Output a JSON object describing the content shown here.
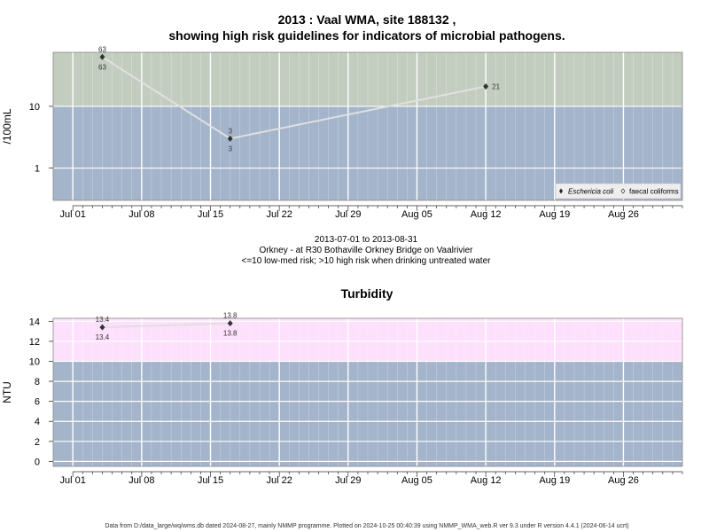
{
  "chart_data": [
    {
      "type": "line",
      "title_line1": "2013 : Vaal WMA, site 188132 ,",
      "title_line2": "showing high risk guidelines for indicators of microbial pathogens.",
      "ylabel": "/100mL",
      "y_scale": "log",
      "ylim": [
        0.3,
        75
      ],
      "y_ticks": [
        1,
        10
      ],
      "y_tick_labels": [
        "1",
        "10"
      ],
      "threshold": 10,
      "x_tick_labels": [
        "Jul 01",
        "Jul 08",
        "Jul 15",
        "Jul 22",
        "Jul 29",
        "Aug 05",
        "Aug 12",
        "Aug 19",
        "Aug 26"
      ],
      "x_tick_days": [
        0,
        7,
        14,
        21,
        28,
        35,
        42,
        49,
        56
      ],
      "x_range_days": [
        -2,
        62
      ],
      "legend_position": "bottom-right",
      "legend": [
        "Eschericia coli",
        "faecal coliforms"
      ],
      "series": [
        {
          "name": "Eschericia coli",
          "x_days": [
            3,
            16,
            42
          ],
          "values": [
            63,
            3,
            21
          ],
          "labels_above": [
            "63",
            "3",
            ""
          ],
          "labels_below": [
            "63",
            "3",
            ""
          ],
          "labels_right": [
            "",
            "",
            "21"
          ]
        }
      ],
      "caption_lines": [
        "2013-07-01 to 2013-08-31",
        "Orkney - at R30 Bothaville Orkney Bridge on Vaalrivier",
        "<=10 low-med risk; >10 high risk when drinking untreated water"
      ]
    },
    {
      "type": "line",
      "title": "Turbidity",
      "ylabel": "NTU",
      "y_scale": "linear",
      "ylim": [
        -0.5,
        14.3
      ],
      "y_ticks": [
        0,
        2,
        4,
        6,
        8,
        10,
        12,
        14
      ],
      "y_tick_labels": [
        "0",
        "2",
        "4",
        "6",
        "8",
        "10",
        "12",
        "14"
      ],
      "threshold": 10,
      "x_tick_labels": [
        "Jul 01",
        "Jul 08",
        "Jul 15",
        "Jul 22",
        "Jul 29",
        "Aug 05",
        "Aug 12",
        "Aug 19",
        "Aug 26"
      ],
      "x_tick_days": [
        0,
        7,
        14,
        21,
        28,
        35,
        42,
        49,
        56
      ],
      "x_range_days": [
        -2,
        62
      ],
      "series": [
        {
          "x_days": [
            3,
            16
          ],
          "values": [
            13.4,
            13.8
          ],
          "labels_above": [
            "13.4",
            "13.8"
          ],
          "labels_below": [
            "13.4",
            "13.8"
          ]
        }
      ]
    }
  ],
  "colors": {
    "low_band": "#a3b4cb",
    "high_band_microbial": "#c2cdc0",
    "high_band_turbidity": "#fde0fb",
    "grid": "#ffffff",
    "line": "#e0e0e0",
    "point": "#333333"
  },
  "footer": "Data from D:/data_large/wq/wms.db dated 2024-08-27, mainly NMMP programme. Plotted on 2024-10-25 00:40:39 using NMMP_WMA_web.R ver 9.3 under R version 4.4.1 (2024-06-14 ucrt)"
}
